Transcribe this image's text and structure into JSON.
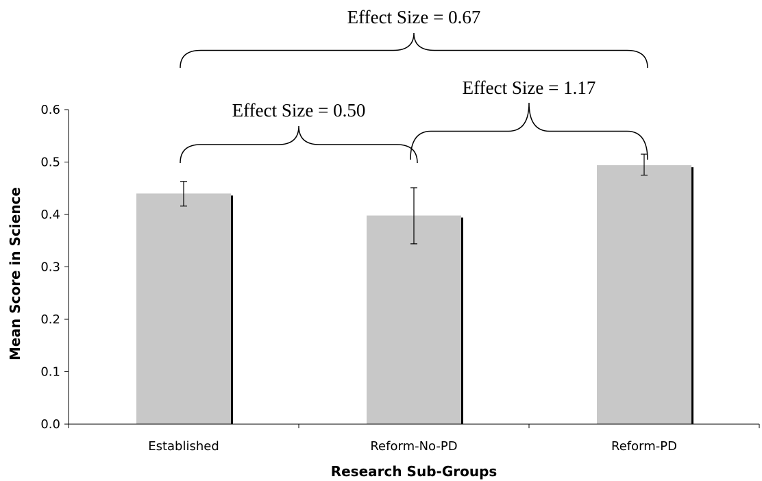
{
  "chart_data": {
    "type": "bar",
    "categories": [
      "Established",
      "Reform-No-PD",
      "Reform-PD"
    ],
    "values": [
      0.44,
      0.398,
      0.494
    ],
    "error_low": [
      0.416,
      0.344,
      0.475
    ],
    "error_high": [
      0.463,
      0.451,
      0.515
    ],
    "ylim": [
      0.0,
      0.6
    ],
    "yticks": [
      "0.0",
      "0.1",
      "0.2",
      "0.3",
      "0.4",
      "0.5",
      "0.6"
    ],
    "xlabel": "Research Sub-Groups",
    "ylabel": "Mean Score in Science",
    "bar_color": "#c8c8c8",
    "grid": false,
    "annotations": [
      {
        "label": "Effect Size = 0.67",
        "from": 0,
        "to": 2
      },
      {
        "label": "Effect Size = 0.50",
        "from": 0,
        "to": 1
      },
      {
        "label": "Effect Size = 1.17",
        "from": 1,
        "to": 2
      }
    ]
  }
}
